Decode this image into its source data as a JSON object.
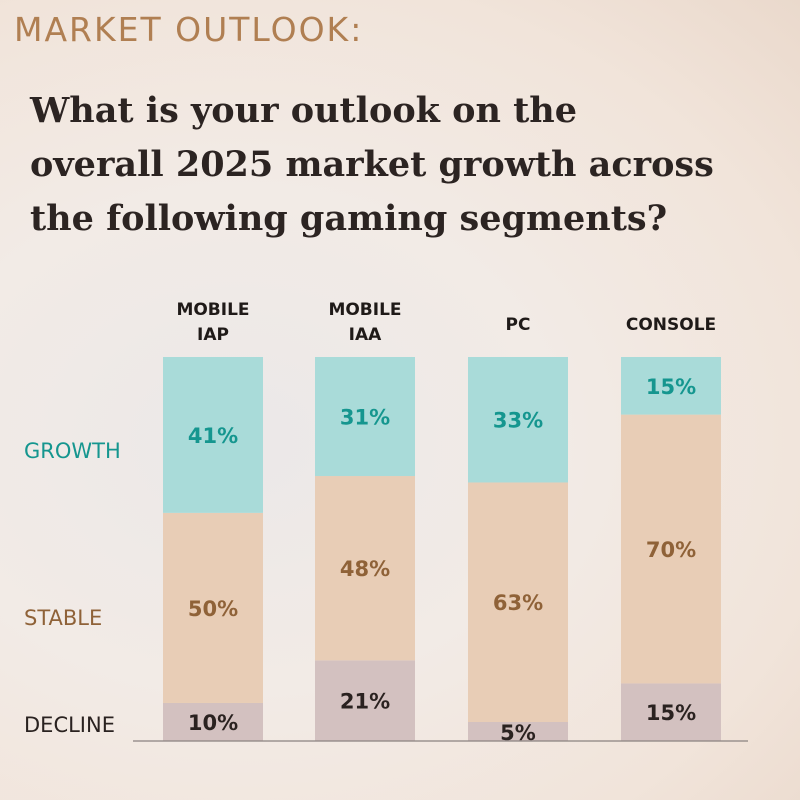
{
  "header": {
    "kicker": "MARKET OUTLOOK:",
    "question_lines": [
      "What is your outlook on the",
      "overall 2025 market growth across",
      "the following gaming segments?"
    ]
  },
  "colors": {
    "growth_fill": "#a9dbd9",
    "growth_text": "#15968f",
    "stable_fill": "#e8cdb6",
    "stable_text": "#8f6238",
    "decline_fill": "#d3c1c0",
    "decline_text": "#2a2220",
    "baseline": "#8a8280"
  },
  "chart_data": {
    "type": "bar",
    "stacked": true,
    "normalized": true,
    "title": "What is your outlook on the overall 2025 market growth across the following gaming segments?",
    "categories": [
      {
        "line1": "MOBILE",
        "line2": "IAP"
      },
      {
        "line1": "MOBILE",
        "line2": "IAA"
      },
      {
        "line1": "PC",
        "line2": ""
      },
      {
        "line1": "CONSOLE",
        "line2": ""
      }
    ],
    "series": [
      {
        "name": "DECLINE",
        "values": [
          10,
          21,
          5,
          15
        ],
        "labels": [
          "10%",
          "21%",
          "5%",
          "15%"
        ]
      },
      {
        "name": "STABLE",
        "values": [
          50,
          48,
          63,
          70
        ],
        "labels": [
          "50%",
          "48%",
          "63%",
          "70%"
        ]
      },
      {
        "name": "GROWTH",
        "values": [
          41,
          31,
          33,
          15
        ],
        "labels": [
          "41%",
          "31%",
          "33%",
          "15%"
        ]
      }
    ],
    "xlabel": "",
    "ylabel": "",
    "ylim": [
      0,
      100
    ]
  }
}
